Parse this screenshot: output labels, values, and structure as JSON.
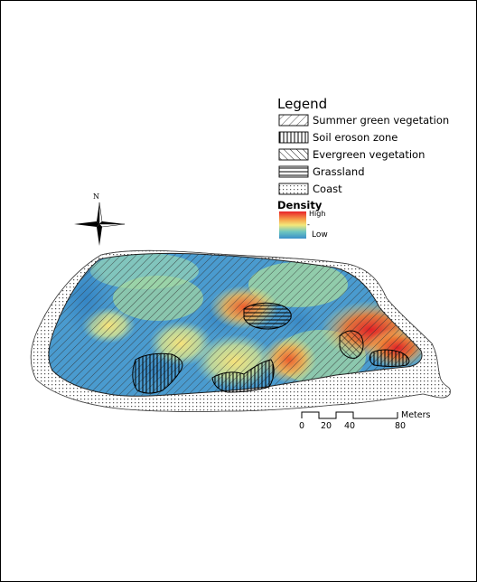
{
  "legend": {
    "title": "Legend",
    "items": [
      {
        "label": "Summer green vegetation",
        "pattern": "diagonal-forward-hatch"
      },
      {
        "label": "Soil eroson zone",
        "pattern": "vertical-hatch"
      },
      {
        "label": "Evergreen vegetation",
        "pattern": "diagonal-backward-hatch"
      },
      {
        "label": "Grassland",
        "pattern": "horizontal-hatch"
      },
      {
        "label": "Coast",
        "pattern": "dotted-grid"
      }
    ],
    "density": {
      "title": "Density",
      "high": "High",
      "mid": "-",
      "low": "Low",
      "colors": [
        "#e8232a",
        "#f7a24a",
        "#f4e87a",
        "#6cc5c0",
        "#3a8fc9"
      ]
    }
  },
  "north_arrow": {
    "label": "N",
    "icon": "compass-rose-icon"
  },
  "scale_bar": {
    "ticks": [
      "0",
      "20",
      "40",
      "80"
    ],
    "unit": "Meters"
  }
}
